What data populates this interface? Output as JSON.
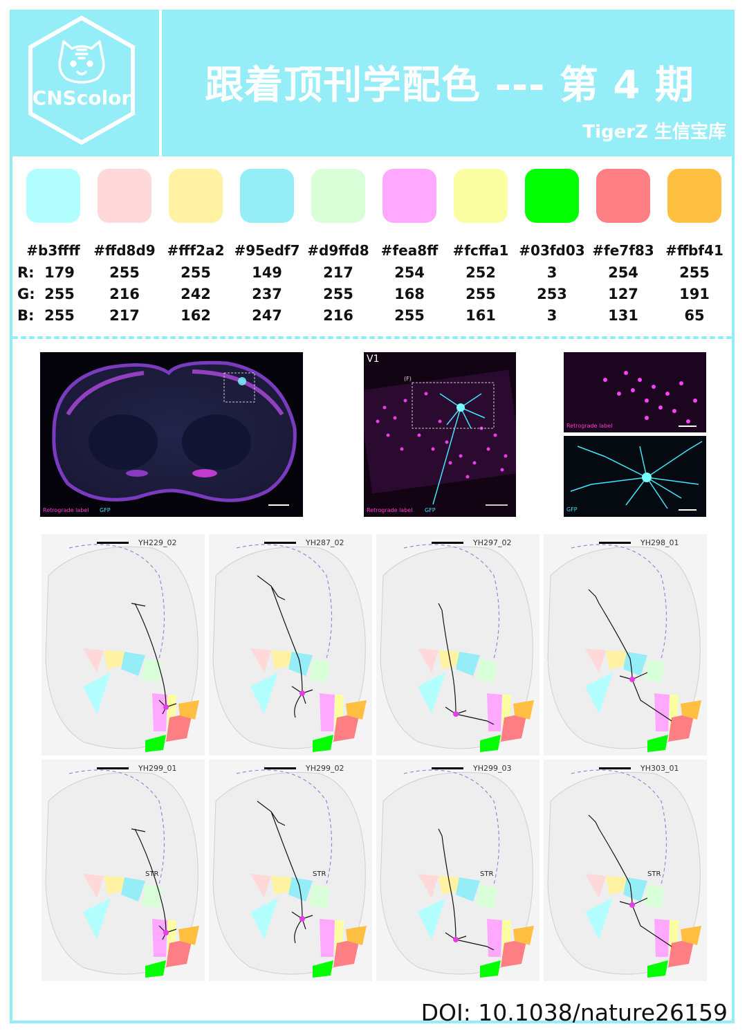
{
  "header": {
    "logo_text": "CNScolor",
    "title": "跟着顶刊学配色 --- 第 4 期",
    "subtitle": "TigerZ 生信宝库"
  },
  "palette": {
    "row_labels": {
      "r": "R:",
      "g": "G:",
      "b": "B:"
    },
    "colors": [
      {
        "hex": "#b3ffff",
        "r": "179",
        "g": "255",
        "b": "255"
      },
      {
        "hex": "#ffd8d9",
        "r": "255",
        "g": "216",
        "b": "217"
      },
      {
        "hex": "#fff2a2",
        "r": "255",
        "g": "242",
        "b": "162"
      },
      {
        "hex": "#95edf7",
        "r": "149",
        "g": "237",
        "b": "247"
      },
      {
        "hex": "#d9ffd8",
        "r": "217",
        "g": "255",
        "b": "216"
      },
      {
        "hex": "#fea8ff",
        "r": "254",
        "g": "168",
        "b": "255"
      },
      {
        "hex": "#fcffa1",
        "r": "252",
        "g": "255",
        "b": "161"
      },
      {
        "hex": "#03fd03",
        "r": "3",
        "g": "253",
        "b": "3"
      },
      {
        "hex": "#fe7f83",
        "r": "254",
        "g": "127",
        "b": "131"
      },
      {
        "hex": "#ffbf41",
        "r": "255",
        "g": "191",
        "b": "65"
      }
    ]
  },
  "figure": {
    "brain_retro": "Retrograde label",
    "brain_gfp": "GFP",
    "v1_label": "V1",
    "f_label": "(F)",
    "inset_retro": "Retrograde label",
    "inset_gfp": "GFP",
    "panels": [
      {
        "id": "YH229_02"
      },
      {
        "id": "YH287_02"
      },
      {
        "id": "YH297_02"
      },
      {
        "id": "YH298_01"
      },
      {
        "id": "YH299_01",
        "str": "STR"
      },
      {
        "id": "YH299_02",
        "str": "STR"
      },
      {
        "id": "YH299_03",
        "str": "STR"
      },
      {
        "id": "YH303_01",
        "str": "STR"
      }
    ]
  },
  "doi": "DOI: 10.1038/nature26159"
}
